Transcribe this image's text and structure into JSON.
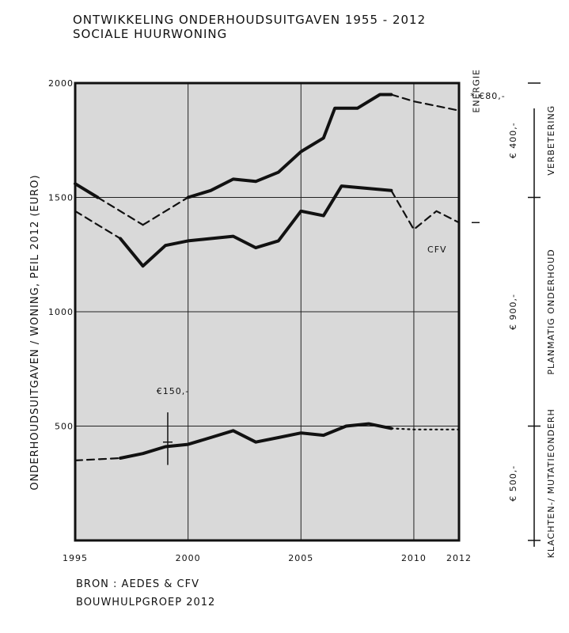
{
  "title_line1": "ONTWIKKELING ONDERHOUDSUITGAVEN 1955 - 2012",
  "title_line2": "SOCIALE HUURWONING",
  "ylabel": "ONDERHOUDSUITGAVEN / WONING, PEIL 2012 (EURO)",
  "source_line1": "BRON : AEDES & CFV",
  "source_line2": "BOUWHULPGROEP 2012",
  "chart_data": {
    "type": "line",
    "xlim": [
      1995,
      2012
    ],
    "ylim": [
      0,
      2000
    ],
    "x_tick_values": [
      1995,
      2000,
      2005,
      2010,
      2012
    ],
    "x_tick_labels": [
      "1995",
      "2000",
      "2005",
      "2010",
      "2012"
    ],
    "y_tick_values": [
      500,
      1000,
      1500,
      2000
    ],
    "y_tick_labels": [
      "500",
      "1000",
      "1500",
      "2000"
    ],
    "grid": true,
    "background": "#d9d9d9",
    "series": [
      {
        "style": "solid",
        "segments": [
          {
            "style": "solid",
            "points": [
              [
                1995,
                1560
              ],
              [
                1996,
                1500
              ]
            ]
          },
          {
            "style": "dashed",
            "points": [
              [
                1996,
                1500
              ],
              [
                1998,
                1380
              ]
            ]
          },
          {
            "style": "dashed",
            "points": [
              [
                1998,
                1380
              ],
              [
                2000,
                1500
              ]
            ]
          },
          {
            "style": "solid",
            "points": [
              [
                2000,
                1500
              ],
              [
                2001,
                1530
              ],
              [
                2002,
                1580
              ],
              [
                2003,
                1570
              ],
              [
                2004,
                1610
              ],
              [
                2005,
                1700
              ],
              [
                2006,
                1760
              ],
              [
                2006.5,
                1890
              ],
              [
                2007.5,
                1890
              ],
              [
                2008.5,
                1950
              ],
              [
                2009,
                1950
              ]
            ]
          },
          {
            "style": "dashed",
            "points": [
              [
                2009,
                1950
              ],
              [
                2010,
                1920
              ],
              [
                2011,
                1900
              ],
              [
                2012,
                1880
              ]
            ]
          }
        ]
      },
      {
        "segments": [
          {
            "style": "dashed",
            "points": [
              [
                1995,
                1440
              ],
              [
                1997,
                1320
              ]
            ]
          },
          {
            "style": "solid",
            "points": [
              [
                1997,
                1320
              ],
              [
                1998,
                1200
              ],
              [
                1999,
                1290
              ],
              [
                2000,
                1310
              ],
              [
                2001,
                1320
              ],
              [
                2002,
                1330
              ],
              [
                2003,
                1280
              ],
              [
                2004,
                1310
              ],
              [
                2005,
                1440
              ],
              [
                2006,
                1420
              ],
              [
                2006.8,
                1550
              ],
              [
                2009,
                1530
              ]
            ]
          },
          {
            "style": "dashed",
            "points": [
              [
                2009,
                1530
              ],
              [
                2010,
                1360
              ],
              [
                2011,
                1440
              ],
              [
                2012,
                1390
              ]
            ]
          }
        ]
      },
      {
        "segments": [
          {
            "style": "dashed",
            "points": [
              [
                1995,
                350
              ],
              [
                1997,
                360
              ]
            ]
          },
          {
            "style": "solid",
            "points": [
              [
                1997,
                360
              ],
              [
                1998,
                380
              ],
              [
                1999,
                410
              ],
              [
                2000,
                420
              ],
              [
                2001,
                450
              ],
              [
                2002,
                480
              ],
              [
                2003,
                430
              ],
              [
                2004,
                450
              ],
              [
                2005,
                470
              ],
              [
                2006,
                460
              ],
              [
                2007,
                500
              ],
              [
                2008,
                510
              ],
              [
                2009,
                490
              ]
            ]
          },
          {
            "style": "dotted",
            "points": [
              [
                2009,
                490
              ],
              [
                2010,
                485
              ],
              [
                2011,
                485
              ],
              [
                2012,
                485
              ]
            ]
          }
        ]
      }
    ],
    "annotations": [
      {
        "text": "€150,-",
        "x": 1998.6,
        "y": 640
      },
      {
        "text": "CFV",
        "x": 2010.6,
        "y": 1260
      },
      {
        "text": "* €80,-",
        "x": 2012.5,
        "y": 1930
      },
      {
        "text": "ENERGIE",
        "x": 2012.9,
        "y": 1870
      }
    ],
    "right_brackets": [
      {
        "from": 2000,
        "to": 1500,
        "label": "€ 400,-",
        "text": "VERBETERING"
      },
      {
        "from": 1500,
        "to": 500,
        "label": "€ 900,-",
        "text": "PLANMATIG ONDERHOUD"
      },
      {
        "from": 500,
        "to": 0,
        "label": "€ 500,-",
        "text": "KLACHTEN-/ MUTATIEONDERH"
      }
    ]
  }
}
